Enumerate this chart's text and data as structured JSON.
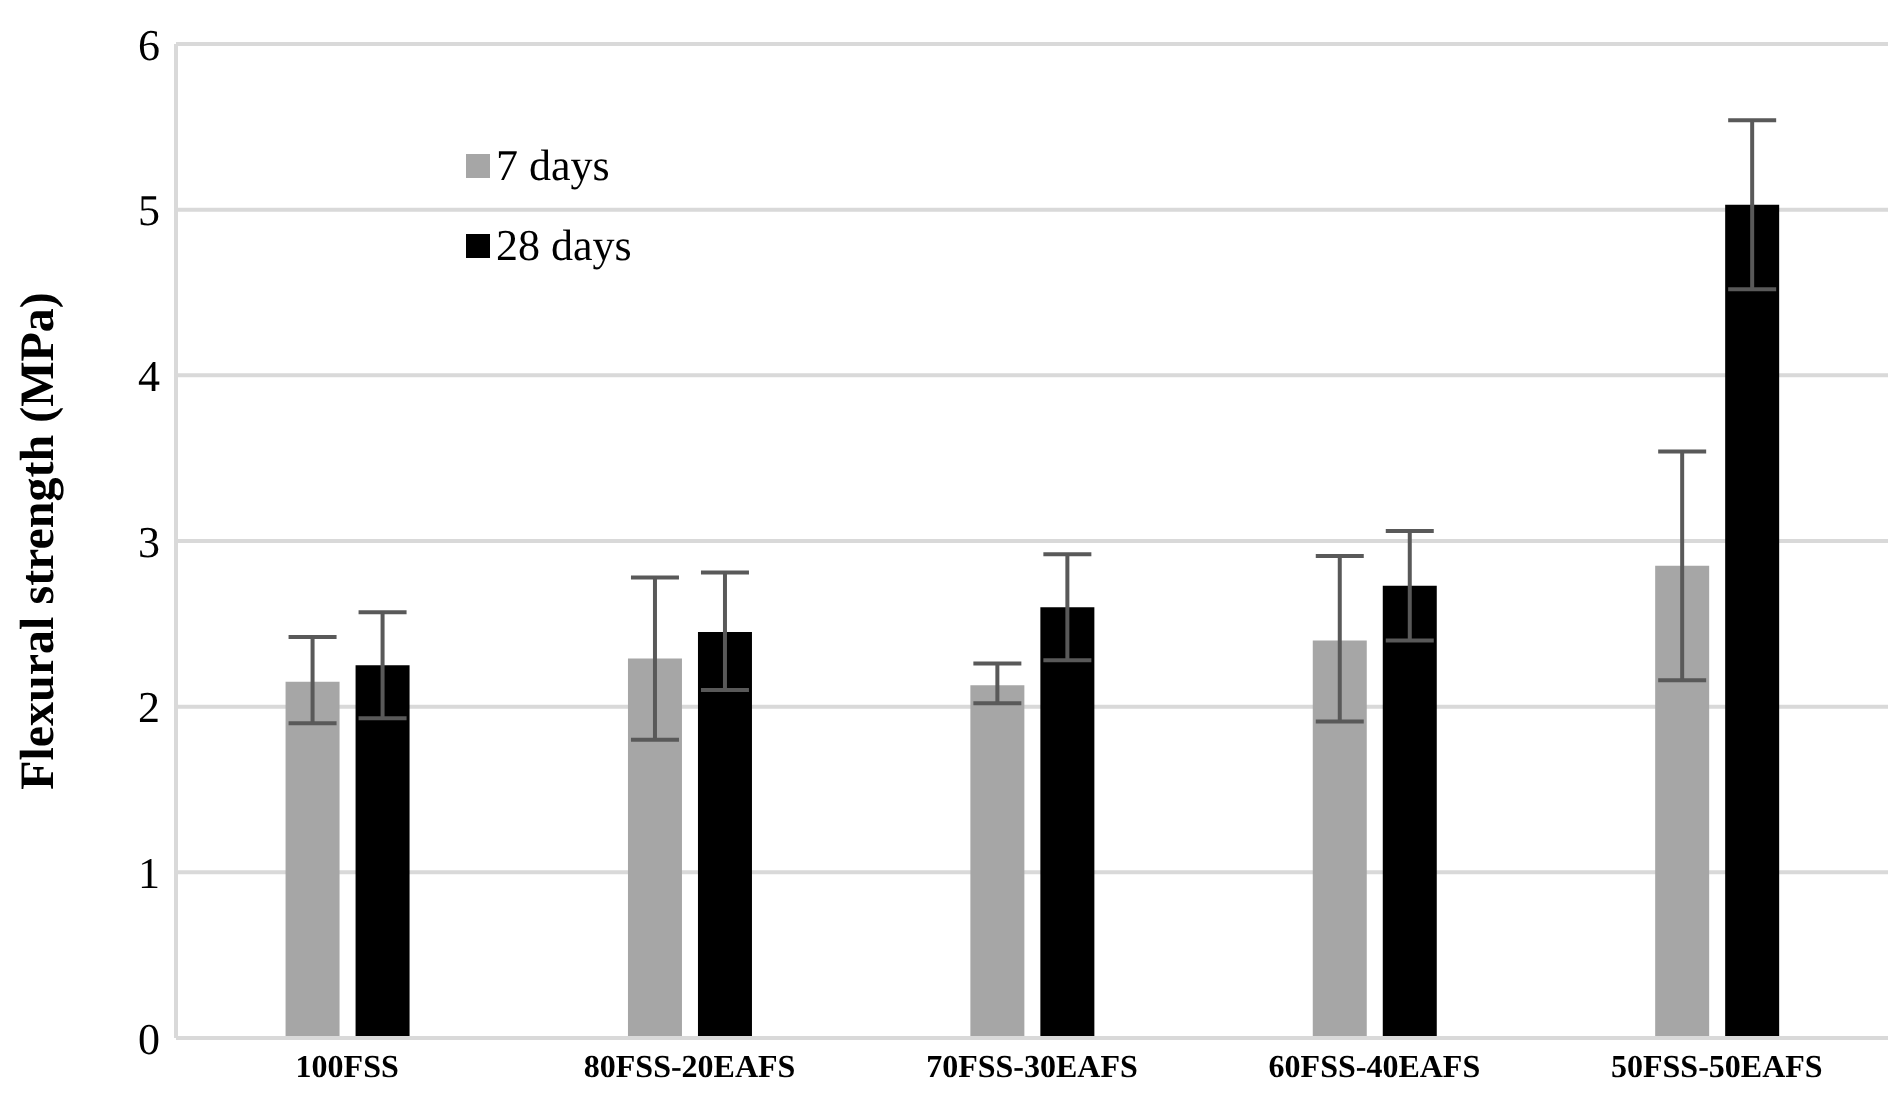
{
  "chart_data": {
    "type": "bar",
    "ylabel": "Flexural strength (MPa)",
    "categories": [
      "100FSS",
      "80FSS-20EAFS",
      "70FSS-30EAFS",
      "60FSS-40EAFS",
      "50FSS-50EAFS"
    ],
    "series": [
      {
        "name": "7 days",
        "color": "#a6a6a6",
        "values": [
          2.15,
          2.29,
          2.13,
          2.4,
          2.85
        ],
        "errors": [
          [
            1.9,
            2.42
          ],
          [
            1.8,
            2.78
          ],
          [
            2.02,
            2.26
          ],
          [
            1.91,
            2.91
          ],
          [
            2.16,
            3.54
          ]
        ]
      },
      {
        "name": "28 days",
        "color": "#000000",
        "values": [
          2.25,
          2.45,
          2.6,
          2.73,
          5.03
        ],
        "errors": [
          [
            1.93,
            2.57
          ],
          [
            2.1,
            2.81
          ],
          [
            2.28,
            2.92
          ],
          [
            2.4,
            3.06
          ],
          [
            4.52,
            5.54
          ]
        ]
      }
    ],
    "ylim": [
      0,
      6
    ],
    "yticks": [
      0,
      1,
      2,
      3,
      4,
      5,
      6
    ],
    "grid": "y",
    "legend": "top left"
  }
}
